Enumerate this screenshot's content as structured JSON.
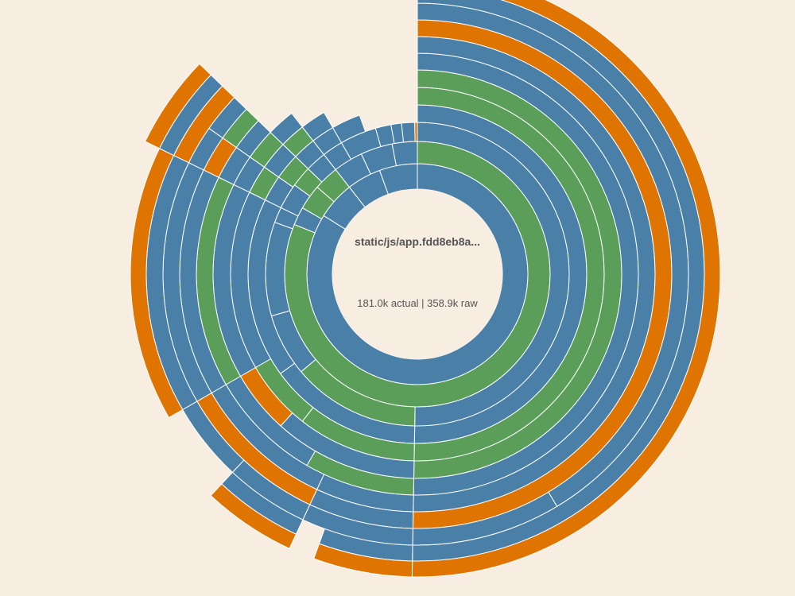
{
  "center": {
    "title": "static/js/app.fdd8eb8a...",
    "stats": "181.0k actual | 358.9k raw"
  },
  "colors": {
    "background": "#f7ede0",
    "blue": "#4a7fa8",
    "green": "#5a9e5a",
    "orange": "#e07400",
    "separator": "#ffffff"
  },
  "chart_data": {
    "type": "sunburst",
    "start_angle_deg": 0,
    "direction": "clockwise",
    "rings": [
      {
        "depth": 1,
        "segments": [
          {
            "start": 0,
            "end": 302,
            "color": "blue"
          },
          {
            "start": 302,
            "end": 322,
            "color": "blue"
          },
          {
            "start": 322,
            "end": 340,
            "color": "blue"
          },
          {
            "start": 340,
            "end": 360,
            "color": "blue"
          }
        ]
      },
      {
        "depth": 2,
        "segments": [
          {
            "start": 0,
            "end": 292,
            "color": "green"
          },
          {
            "start": 292,
            "end": 300,
            "color": "blue"
          },
          {
            "start": 300,
            "end": 311,
            "color": "green"
          },
          {
            "start": 311,
            "end": 322,
            "color": "green"
          },
          {
            "start": 322,
            "end": 335,
            "color": "blue"
          },
          {
            "start": 335,
            "end": 349,
            "color": "blue"
          },
          {
            "start": 349,
            "end": 360,
            "color": "blue"
          }
        ]
      },
      {
        "depth": 3,
        "segments": [
          {
            "start": 0,
            "end": 181,
            "color": "blue"
          },
          {
            "start": 181,
            "end": 230,
            "color": "green"
          },
          {
            "start": 230,
            "end": 254,
            "color": "blue"
          },
          {
            "start": 254,
            "end": 290,
            "color": "blue"
          },
          {
            "start": 290,
            "end": 296,
            "color": "blue"
          },
          {
            "start": 296,
            "end": 306,
            "color": "blue"
          },
          {
            "start": 306,
            "end": 314,
            "color": "green"
          },
          {
            "start": 314,
            "end": 322,
            "color": "blue"
          },
          {
            "start": 322,
            "end": 330,
            "color": "blue"
          },
          {
            "start": 330,
            "end": 344,
            "color": "blue"
          },
          {
            "start": 344,
            "end": 350,
            "color": "blue"
          },
          {
            "start": 350,
            "end": 354,
            "color": "blue"
          },
          {
            "start": 354,
            "end": 359,
            "color": "blue"
          },
          {
            "start": 359,
            "end": 360,
            "color": "orange"
          }
        ]
      },
      {
        "depth": 4,
        "segments": [
          {
            "start": 0,
            "end": 181,
            "color": "blue"
          },
          {
            "start": 181,
            "end": 234,
            "color": "blue"
          },
          {
            "start": 234,
            "end": 296,
            "color": "blue"
          },
          {
            "start": 296,
            "end": 305,
            "color": "blue"
          },
          {
            "start": 305,
            "end": 314,
            "color": "green"
          },
          {
            "start": 314,
            "end": 322,
            "color": "blue"
          },
          {
            "start": 322,
            "end": 330,
            "color": "blue"
          },
          {
            "start": 330,
            "end": 340,
            "color": "blue"
          }
        ]
      },
      {
        "depth": 5,
        "segments": [
          {
            "start": 0,
            "end": 181,
            "color": "green"
          },
          {
            "start": 181,
            "end": 218,
            "color": "green"
          },
          {
            "start": 218,
            "end": 240,
            "color": "green"
          },
          {
            "start": 240,
            "end": 296,
            "color": "blue"
          },
          {
            "start": 296,
            "end": 305,
            "color": "green"
          },
          {
            "start": 305,
            "end": 314,
            "color": "blue"
          },
          {
            "start": 314,
            "end": 322,
            "color": "green"
          },
          {
            "start": 322,
            "end": 330,
            "color": "blue"
          }
        ]
      },
      {
        "depth": 6,
        "segments": [
          {
            "start": 0,
            "end": 181,
            "color": "green"
          },
          {
            "start": 181,
            "end": 222,
            "color": "blue"
          },
          {
            "start": 222,
            "end": 240,
            "color": "orange"
          },
          {
            "start": 240,
            "end": 296,
            "color": "blue"
          },
          {
            "start": 296,
            "end": 305,
            "color": "blue"
          },
          {
            "start": 305,
            "end": 314,
            "color": "green"
          },
          {
            "start": 314,
            "end": 322,
            "color": "blue"
          }
        ]
      },
      {
        "depth": 7,
        "segments": [
          {
            "start": 0,
            "end": 181,
            "color": "blue"
          },
          {
            "start": 181,
            "end": 210,
            "color": "green"
          },
          {
            "start": 210,
            "end": 240,
            "color": "blue"
          },
          {
            "start": 240,
            "end": 296,
            "color": "green"
          },
          {
            "start": 296,
            "end": 305,
            "color": "blue"
          },
          {
            "start": 305,
            "end": 314,
            "color": "blue"
          }
        ]
      },
      {
        "depth": 8,
        "segments": [
          {
            "start": 0,
            "end": 181,
            "color": "blue"
          },
          {
            "start": 181,
            "end": 205,
            "color": "blue"
          },
          {
            "start": 205,
            "end": 240,
            "color": "blue"
          },
          {
            "start": 240,
            "end": 296,
            "color": "blue"
          },
          {
            "start": 296,
            "end": 305,
            "color": "orange"
          },
          {
            "start": 305,
            "end": 314,
            "color": "green"
          }
        ]
      },
      {
        "depth": 9,
        "segments": [
          {
            "start": 0,
            "end": 181,
            "color": "orange"
          },
          {
            "start": 181,
            "end": 205,
            "color": "blue"
          },
          {
            "start": 205,
            "end": 240,
            "color": "orange"
          },
          {
            "start": 240,
            "end": 296,
            "color": "blue"
          },
          {
            "start": 296,
            "end": 305,
            "color": "blue"
          },
          {
            "start": 305,
            "end": 314,
            "color": "blue"
          }
        ]
      },
      {
        "depth": 10,
        "segments": [
          {
            "start": 0,
            "end": 149,
            "color": "blue"
          },
          {
            "start": 149,
            "end": 181,
            "color": "blue"
          },
          {
            "start": 181,
            "end": 205,
            "color": "blue"
          },
          {
            "start": 205,
            "end": 223,
            "color": "blue"
          },
          {
            "start": 223,
            "end": 240,
            "color": "blue"
          },
          {
            "start": 240,
            "end": 296,
            "color": "blue"
          },
          {
            "start": 296,
            "end": 314,
            "color": "orange"
          }
        ]
      },
      {
        "depth": 11,
        "segments": [
          {
            "start": 0,
            "end": 181,
            "color": "blue"
          },
          {
            "start": 181,
            "end": 200,
            "color": "blue"
          },
          {
            "start": 205,
            "end": 223,
            "color": "blue"
          },
          {
            "start": 240,
            "end": 296,
            "color": "orange"
          },
          {
            "start": 296,
            "end": 314,
            "color": "blue"
          }
        ]
      },
      {
        "depth": 12,
        "segments": [
          {
            "start": 0,
            "end": 181,
            "color": "orange"
          },
          {
            "start": 181,
            "end": 200,
            "color": "orange"
          },
          {
            "start": 205,
            "end": 223,
            "color": "orange"
          },
          {
            "start": 296,
            "end": 314,
            "color": "orange"
          }
        ]
      }
    ]
  }
}
